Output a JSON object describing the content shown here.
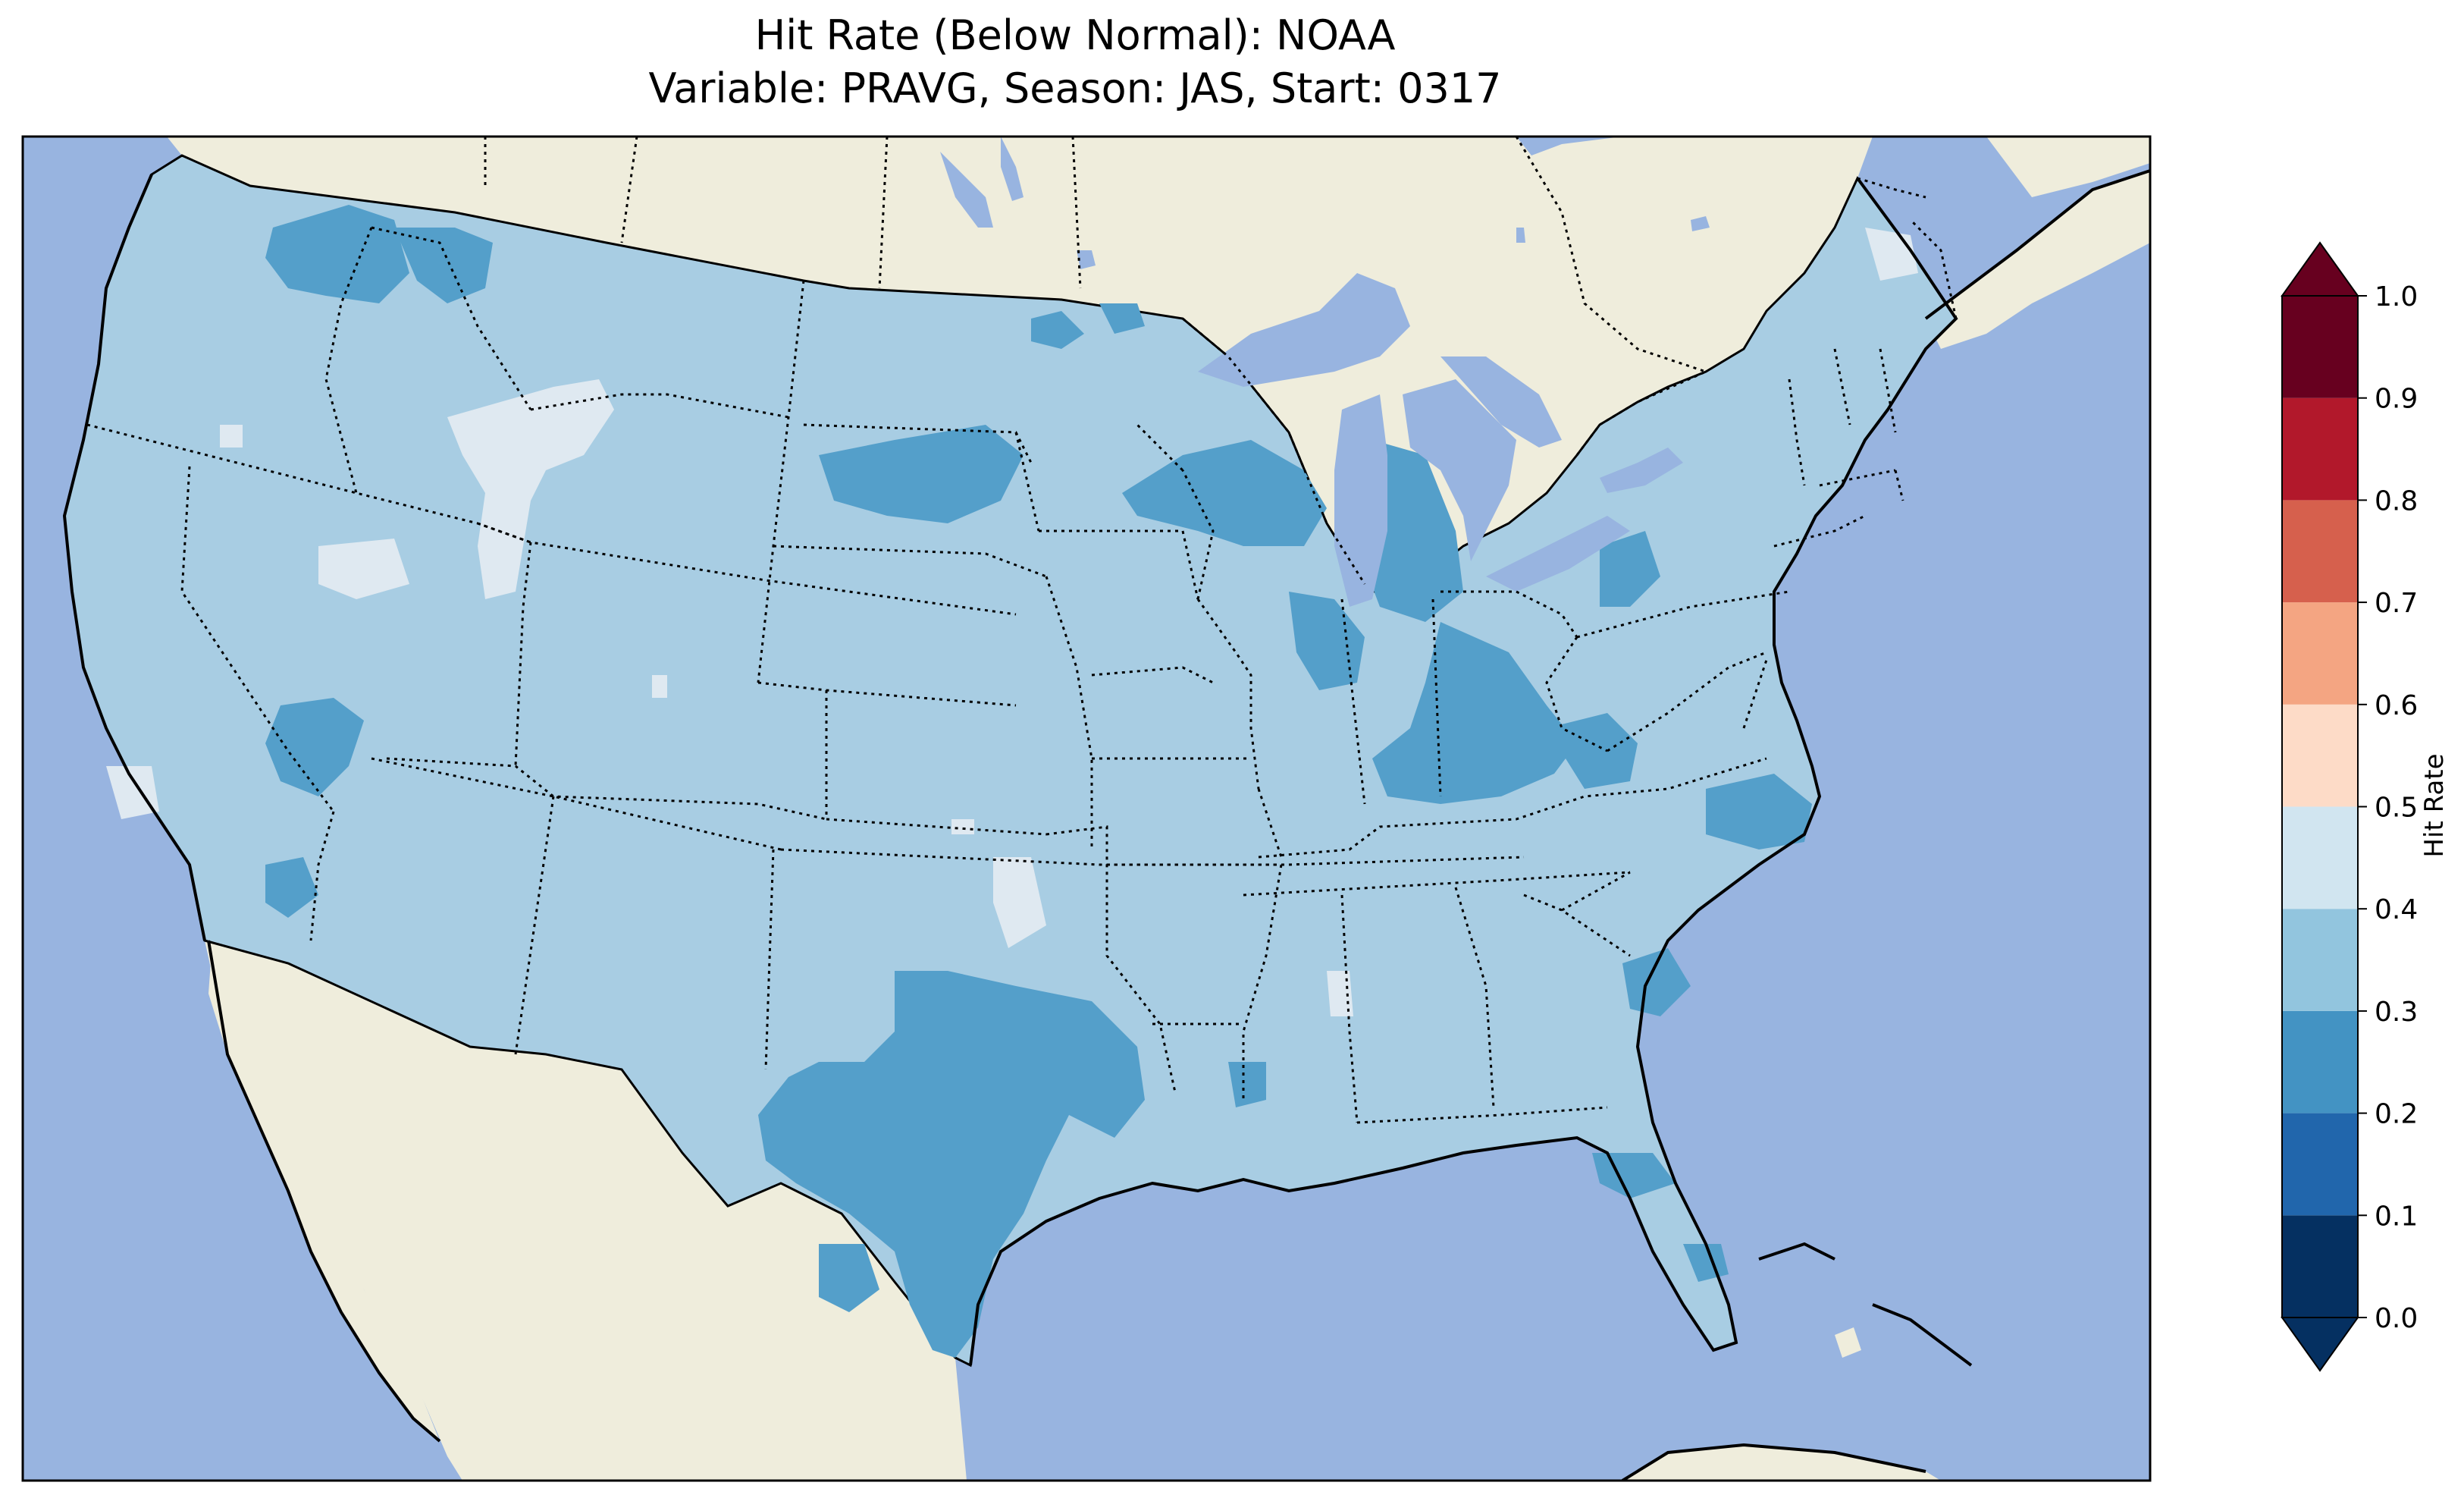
{
  "title": {
    "line1": "Hit Rate (Below Normal): NOAA",
    "line2": "Variable: PRAVG, Season: JAS, Start: 0317"
  },
  "colors": {
    "ocean": "#98b4e0",
    "land": "#efeddc",
    "field_03_04": "#a8cde3",
    "field_02_03": "#549fca",
    "field_04_05": "#dfe9f1"
  },
  "colorbar": {
    "label": "Hit Rate",
    "ticks": [
      "0.0",
      "0.1",
      "0.2",
      "0.3",
      "0.4",
      "0.5",
      "0.6",
      "0.7",
      "0.8",
      "0.9",
      "1.0"
    ],
    "bins": [
      {
        "range": [
          0.0,
          0.1
        ],
        "color": "#053061"
      },
      {
        "range": [
          0.1,
          0.2
        ],
        "color": "#2166ac"
      },
      {
        "range": [
          0.2,
          0.3
        ],
        "color": "#4393c3"
      },
      {
        "range": [
          0.3,
          0.4
        ],
        "color": "#92c5de"
      },
      {
        "range": [
          0.4,
          0.5
        ],
        "color": "#d1e5f0"
      },
      {
        "range": [
          0.5,
          0.6
        ],
        "color": "#fddbc7"
      },
      {
        "range": [
          0.6,
          0.7
        ],
        "color": "#f4a582"
      },
      {
        "range": [
          0.7,
          0.8
        ],
        "color": "#d6604d"
      },
      {
        "range": [
          0.8,
          0.9
        ],
        "color": "#b2182b"
      },
      {
        "range": [
          0.9,
          1.0
        ],
        "color": "#67001f"
      }
    ],
    "extend": "both"
  }
}
